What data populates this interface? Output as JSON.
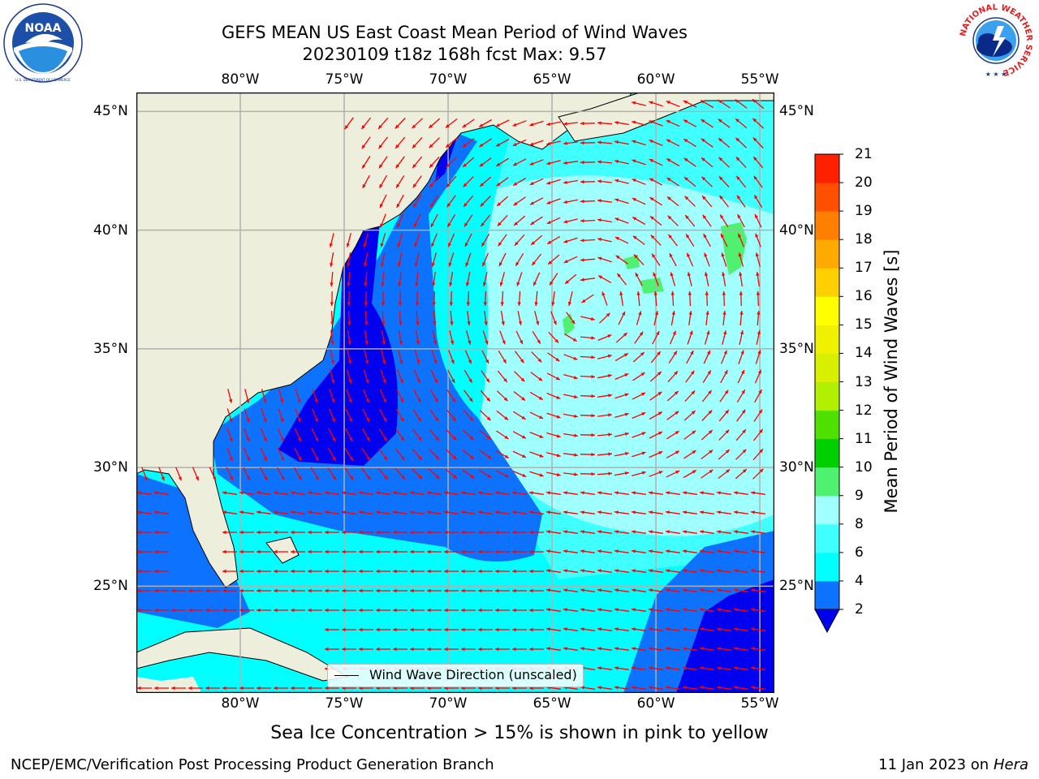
{
  "header": {
    "title_line1": "GEFS MEAN US East Coast Mean Period of Wind Waves",
    "title_line2": "20230109 t18z 168h fcst   Max: 9.57"
  },
  "logos": {
    "left": {
      "name": "noaa-logo",
      "text": "NOAA",
      "ring_text": "NATIONAL OCEANIC AND ATMOSPHERIC ADMINISTRATION · U.S. DEPARTMENT OF COMMERCE"
    },
    "right": {
      "name": "nws-logo",
      "ring_text": "NATIONAL WEATHER SERVICE"
    }
  },
  "map": {
    "projection_extent": {
      "lon_min": -85,
      "lon_max": -54.3,
      "lat_min": 20.5,
      "lat_max": 45.8
    },
    "lon_ticks": [
      {
        "value": -80,
        "label": "80°W"
      },
      {
        "value": -75,
        "label": "75°W"
      },
      {
        "value": -70,
        "label": "70°W"
      },
      {
        "value": -65,
        "label": "65°W"
      },
      {
        "value": -60,
        "label": "60°W"
      },
      {
        "value": -55,
        "label": "55°W"
      }
    ],
    "lat_ticks": [
      {
        "value": 45,
        "label": "45°N"
      },
      {
        "value": 40,
        "label": "40°N"
      },
      {
        "value": 35,
        "label": "35°N"
      },
      {
        "value": 30,
        "label": "30°N"
      },
      {
        "value": 25,
        "label": "25°N"
      }
    ],
    "colors": {
      "land": "#eeeedc",
      "grid": "#b0b0b0",
      "arrow": "#ff0000",
      "coast": "#000000"
    },
    "legend": {
      "label": "Wind Wave Direction (unscaled)"
    }
  },
  "colorbar": {
    "label": "Mean Period of Wind Waves [s]",
    "levels": [
      2,
      4,
      6,
      8,
      9,
      10,
      11,
      12,
      13,
      14,
      15,
      16,
      17,
      18,
      19,
      20,
      21
    ],
    "colors": [
      "#0d73ff",
      "#00ffff",
      "#40ffff",
      "#a0ffff",
      "#50f070",
      "#00d000",
      "#50e000",
      "#b0f000",
      "#d8f000",
      "#f0f000",
      "#ffff00",
      "#ffd000",
      "#ffaa00",
      "#ff8000",
      "#ff5000",
      "#ff2000"
    ],
    "extend_low_color": "#0000f0"
  },
  "footer": {
    "sea_ice_note": "Sea Ice Concentration > 15% is shown in pink to yellow",
    "credit_left": "NCEP/EMC/Verification Post Processing Product Generation Branch",
    "credit_right_date": "11 Jan 2023 on ",
    "credit_right_machine": "Hera"
  }
}
